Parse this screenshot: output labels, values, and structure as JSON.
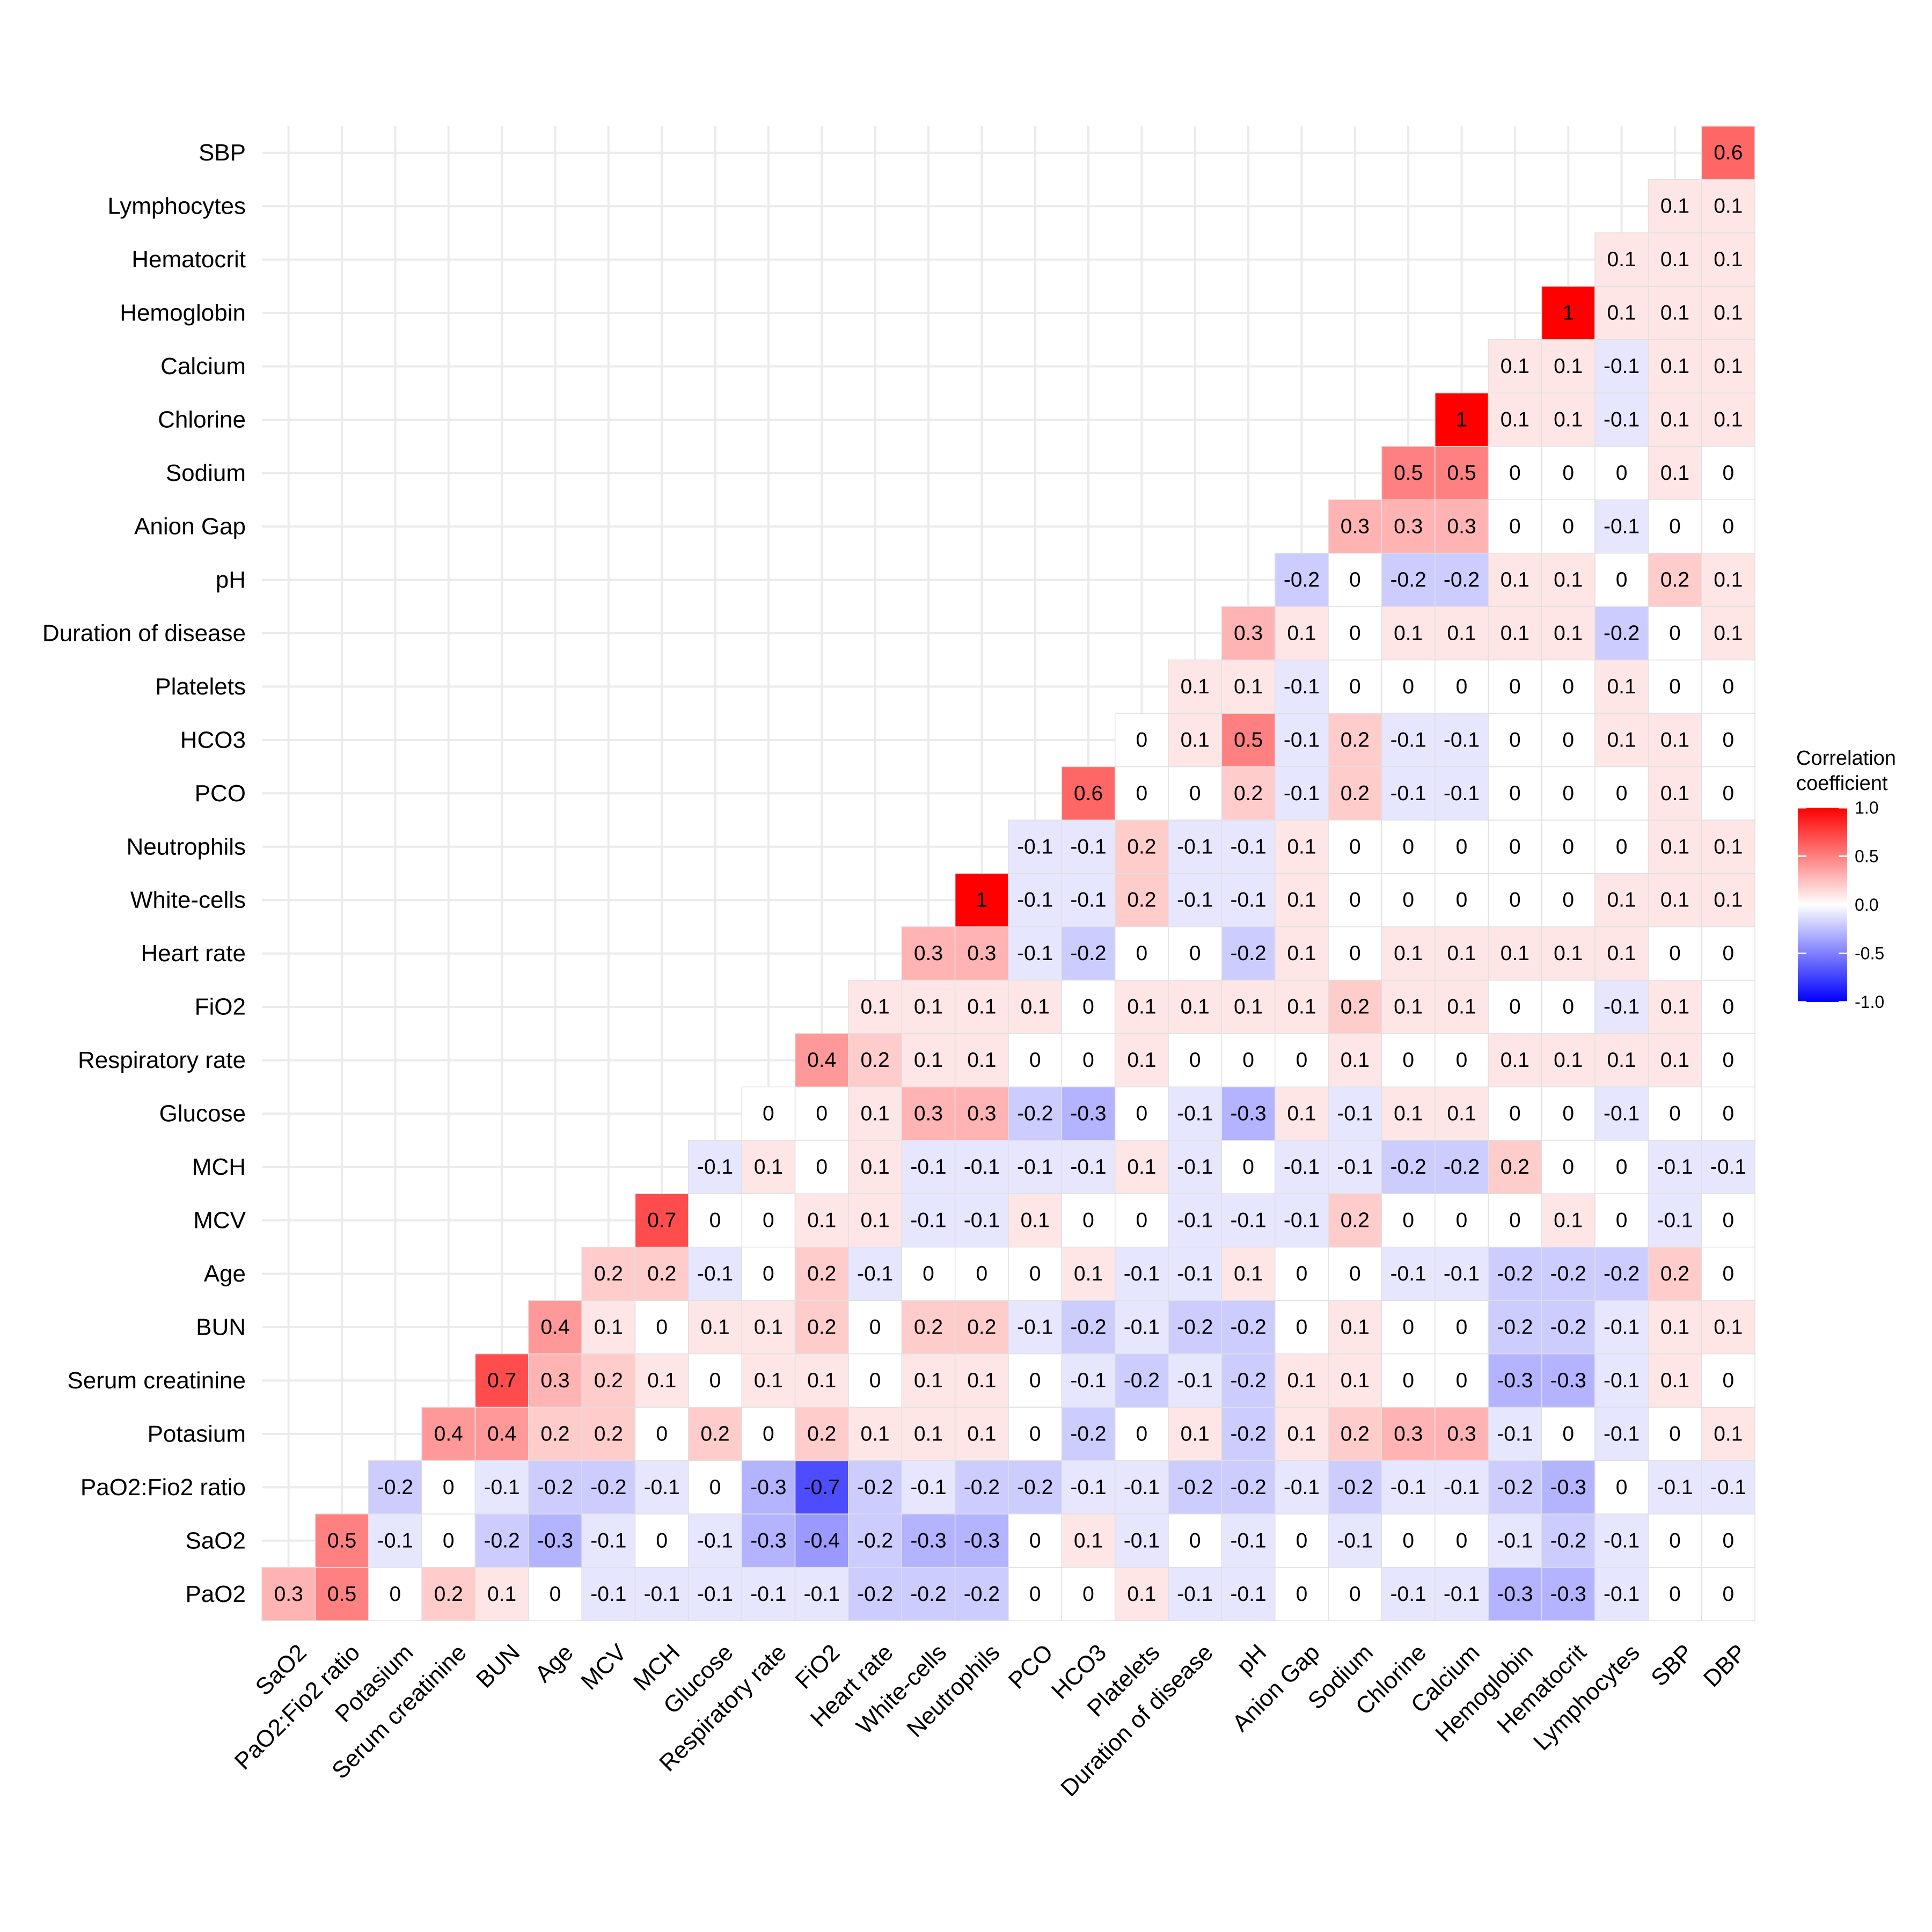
{
  "chart_data": {
    "type": "heatmap",
    "title": "",
    "xlabel": "",
    "ylabel": "",
    "x_categories": [
      "SaO2",
      "PaO2:Fio2 ratio",
      "Potasium",
      "Serum creatinine",
      "BUN",
      "Age",
      "MCV",
      "MCH",
      "Glucose",
      "Respiratory rate",
      "FiO2",
      "Heart rate",
      "White-cells",
      "Neutrophils",
      "PCO",
      "HCO3",
      "Platelets",
      "Duration of disease",
      "pH",
      "Anion Gap",
      "Sodium",
      "Chlorine",
      "Calcium",
      "Hemoglobin",
      "Hematocrit",
      "Lymphocytes",
      "SBP",
      "DBP"
    ],
    "y_categories_bottom_to_top": [
      "PaO2",
      "SaO2",
      "PaO2:Fio2 ratio",
      "Potasium",
      "Serum creatinine",
      "BUN",
      "Age",
      "MCV",
      "MCH",
      "Glucose",
      "Respiratory rate",
      "FiO2",
      "Heart rate",
      "White-cells",
      "Neutrophils",
      "PCO",
      "HCO3",
      "Platelets",
      "Duration of disease",
      "pH",
      "Anion Gap",
      "Sodium",
      "Chlorine",
      "Calcium",
      "Hemoglobin",
      "Hematocrit",
      "Lymphocytes",
      "SBP"
    ],
    "values_by_row_bottom_to_top": [
      [
        0.3,
        0.5,
        0,
        0.2,
        0.1,
        0,
        -0.1,
        -0.1,
        -0.1,
        -0.1,
        -0.1,
        -0.2,
        -0.2,
        -0.2,
        0,
        0,
        0.1,
        -0.1,
        -0.1,
        0,
        0,
        -0.1,
        -0.1,
        -0.3,
        -0.3,
        -0.1,
        0,
        0
      ],
      [
        0.5,
        -0.1,
        0,
        -0.2,
        -0.3,
        -0.1,
        0,
        -0.1,
        -0.3,
        -0.4,
        -0.2,
        -0.3,
        -0.3,
        0,
        0.1,
        -0.1,
        0,
        -0.1,
        0,
        -0.1,
        0,
        0,
        -0.1,
        -0.2,
        -0.1,
        0,
        0
      ],
      [
        -0.2,
        0,
        -0.1,
        -0.2,
        -0.2,
        -0.1,
        0,
        -0.3,
        -0.7,
        -0.2,
        -0.1,
        -0.2,
        -0.2,
        -0.1,
        -0.1,
        -0.2,
        -0.2,
        -0.1,
        -0.2,
        -0.1,
        -0.1,
        -0.2,
        -0.3,
        0,
        -0.1,
        -0.1
      ],
      [
        0.4,
        0.4,
        0.2,
        0.2,
        0,
        0.2,
        0,
        0.2,
        0.1,
        0.1,
        0.1,
        0,
        -0.2,
        0,
        0.1,
        -0.2,
        0.1,
        0.2,
        0.3,
        0.3,
        -0.1,
        0,
        -0.1,
        0,
        0.1
      ],
      [
        0.7,
        0.3,
        0.2,
        0.1,
        0,
        0.1,
        0.1,
        0,
        0.1,
        0.1,
        0,
        -0.1,
        -0.2,
        -0.1,
        -0.2,
        0.1,
        0.1,
        0,
        0,
        -0.3,
        -0.3,
        -0.1,
        0.1,
        0
      ],
      [
        0.4,
        0.1,
        0,
        0.1,
        0.1,
        0.2,
        0,
        0.2,
        0.2,
        -0.1,
        -0.2,
        -0.1,
        -0.2,
        -0.2,
        0,
        0.1,
        0,
        0,
        -0.2,
        -0.2,
        -0.1,
        0.1,
        0.1
      ],
      [
        0.2,
        0.2,
        -0.1,
        0,
        0.2,
        -0.1,
        0,
        0,
        0,
        0.1,
        -0.1,
        -0.1,
        0.1,
        0,
        0,
        -0.1,
        -0.1,
        -0.2,
        -0.2,
        -0.2,
        0.2,
        0
      ],
      [
        0.7,
        0,
        0,
        0.1,
        0.1,
        -0.1,
        -0.1,
        0.1,
        0,
        0,
        -0.1,
        -0.1,
        -0.1,
        0.2,
        0,
        0,
        0,
        0.1,
        0,
        -0.1,
        0
      ],
      [
        -0.1,
        0.1,
        0,
        0.1,
        -0.1,
        -0.1,
        -0.1,
        -0.1,
        0.1,
        -0.1,
        0,
        -0.1,
        -0.1,
        -0.2,
        -0.2,
        0.2,
        0,
        0,
        -0.1,
        -0.1
      ],
      [
        0,
        0,
        0.1,
        0.3,
        0.3,
        -0.2,
        -0.3,
        0,
        -0.1,
        -0.3,
        0.1,
        -0.1,
        0.1,
        0.1,
        0,
        0,
        -0.1,
        0,
        0
      ],
      [
        0.4,
        0.2,
        0.1,
        0.1,
        0,
        0,
        0.1,
        0,
        0,
        0,
        0.1,
        0,
        0,
        0.1,
        0.1,
        0.1,
        0.1,
        0
      ],
      [
        0.1,
        0.1,
        0.1,
        0.1,
        0,
        0.1,
        0.1,
        0.1,
        0.1,
        0.2,
        0.1,
        0.1,
        0,
        0,
        -0.1,
        0.1,
        0
      ],
      [
        0.3,
        0.3,
        -0.1,
        -0.2,
        0,
        0,
        -0.2,
        0.1,
        0,
        0.1,
        0.1,
        0.1,
        0.1,
        0.1,
        0,
        0
      ],
      [
        1,
        -0.1,
        -0.1,
        0.2,
        -0.1,
        -0.1,
        0.1,
        0,
        0,
        0,
        0,
        0,
        0.1,
        0.1,
        0.1
      ],
      [
        -0.1,
        -0.1,
        0.2,
        -0.1,
        -0.1,
        0.1,
        0,
        0,
        0,
        0,
        0,
        0,
        0.1,
        0.1
      ],
      [
        0.6,
        0,
        0,
        0.2,
        -0.1,
        0.2,
        -0.1,
        -0.1,
        0,
        0,
        0,
        0.1,
        0
      ],
      [
        0,
        0.1,
        0.5,
        -0.1,
        0.2,
        -0.1,
        -0.1,
        0,
        0,
        0.1,
        0.1,
        0
      ],
      [
        0.1,
        0.1,
        -0.1,
        0,
        0,
        0,
        0,
        0,
        0.1,
        0,
        0
      ],
      [
        0.3,
        0.1,
        0,
        0.1,
        0.1,
        0.1,
        0.1,
        -0.2,
        0,
        0.1
      ],
      [
        -0.2,
        0,
        -0.2,
        -0.2,
        0.1,
        0.1,
        0,
        0.2,
        0.1
      ],
      [
        0.3,
        0.3,
        0.3,
        0,
        0,
        -0.1,
        0,
        0
      ],
      [
        0.5,
        0.5,
        0,
        0,
        0,
        0.1,
        0
      ],
      [
        1,
        0.1,
        0.1,
        -0.1,
        0.1,
        0.1
      ],
      [
        0.1,
        0.1,
        -0.1,
        0.1,
        0.1
      ],
      [
        1,
        0.1,
        0.1,
        0.1
      ],
      [
        0.1,
        0.1,
        0.1
      ],
      [
        0.1,
        0.1
      ],
      [
        0.6
      ]
    ],
    "color_scale": {
      "low": "#0000FF",
      "mid": "#FFFFFF",
      "high": "#FF0000",
      "limits": [
        -1,
        1
      ]
    },
    "legend": {
      "title_line1": "Correlation",
      "title_line2": "coefficient",
      "ticks": [
        "1.0",
        "0.5",
        "0.0",
        "-0.5",
        "-1.0"
      ],
      "placement": "right"
    },
    "grid": true
  }
}
